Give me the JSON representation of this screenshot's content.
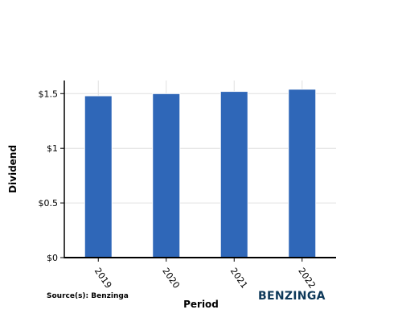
{
  "chart_data": {
    "type": "bar",
    "title": "",
    "xlabel": "Period",
    "ylabel": "Dividend",
    "categories": [
      "2019",
      "2020",
      "2021",
      "2022"
    ],
    "values": [
      1.48,
      1.5,
      1.52,
      1.54
    ],
    "ylim": [
      0,
      1.62
    ],
    "yticks": [
      {
        "value": 0,
        "label": "$0"
      },
      {
        "value": 0.5,
        "label": "$0.5"
      },
      {
        "value": 1,
        "label": "$1"
      },
      {
        "value": 1.5,
        "label": "$1.5"
      }
    ],
    "grid": true,
    "legend": "none",
    "bar_color": "#2f67b8",
    "grid_color": "#e0e0e0"
  },
  "source": "Source(s): Benzinga",
  "logo": {
    "text": "BENZINGA",
    "color": "#0d3859"
  }
}
